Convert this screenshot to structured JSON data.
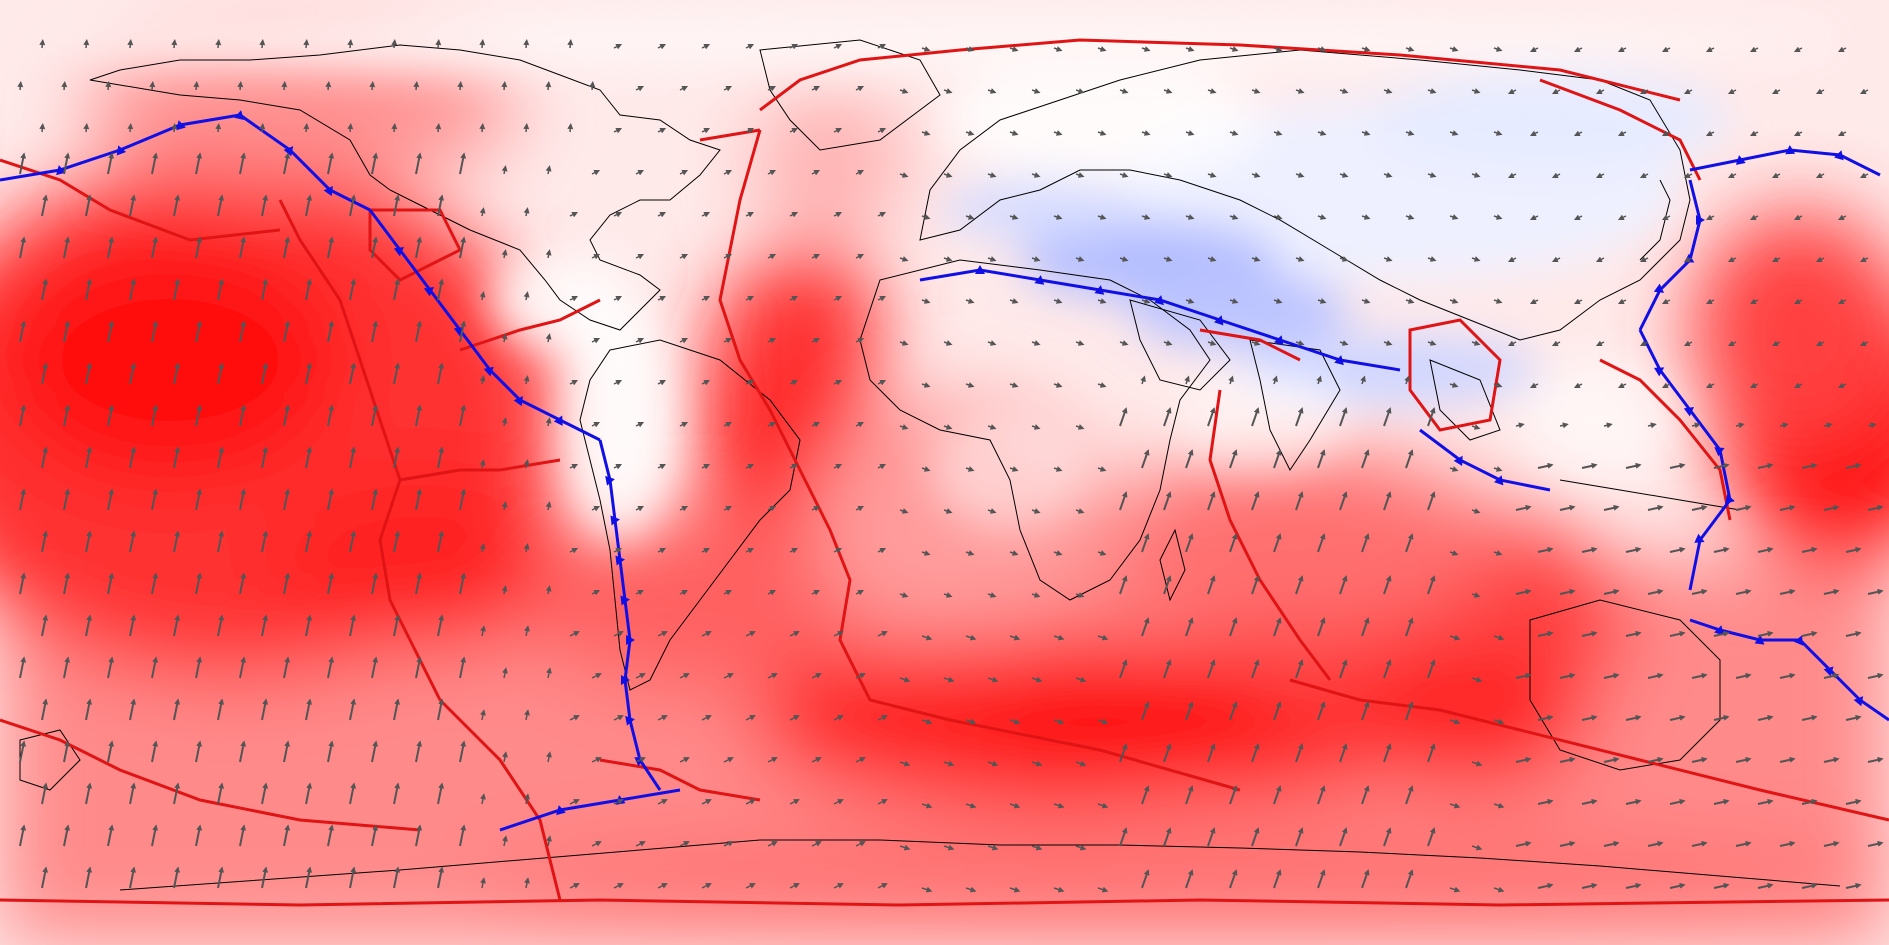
{
  "map": {
    "projection": "equirectangular",
    "colors": {
      "background": "#fff1f1",
      "strong_red": "#ff1a1a",
      "mid_red": "#ff6e6e",
      "light_red": "#ffb6b6",
      "pale": "#ffe4e4",
      "pale_blue": "#e8ecff",
      "blue": "#a9b4ff",
      "plate_boundary": "#e01414",
      "subduction_zone": "#1010e6",
      "coastline": "#000000",
      "velocity_arrow": "#555555"
    },
    "layers": [
      "velocity-magnitude-field",
      "coastlines",
      "plate-boundaries",
      "subduction-zones",
      "velocity-vectors"
    ]
  }
}
